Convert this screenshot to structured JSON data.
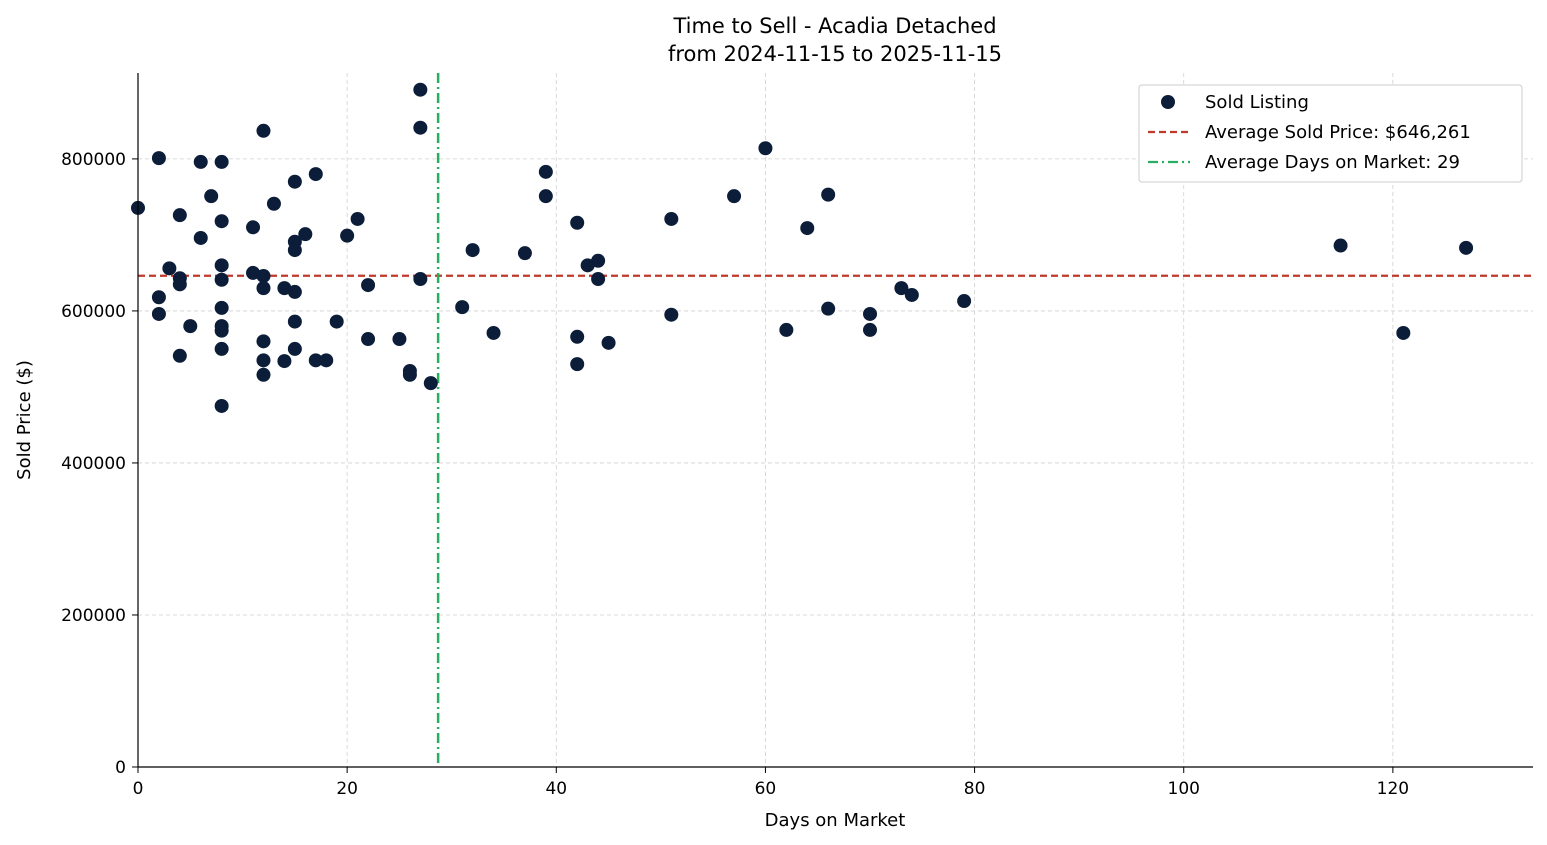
{
  "chart_data": {
    "type": "scatter",
    "title": "Time to Sell - Acadia Detached",
    "subtitle": "from 2024-11-15 to 2025-11-15",
    "xlabel": "Days on Market",
    "ylabel": "Sold Price ($)",
    "xlim": [
      0,
      133.4
    ],
    "ylim": [
      0,
      913000
    ],
    "xticks": [
      0,
      20,
      40,
      60,
      80,
      100,
      120
    ],
    "yticks": [
      0,
      200000,
      400000,
      600000,
      800000
    ],
    "grid": true,
    "legend_position": "top-right",
    "legend": {
      "points": "Sold Listing",
      "avg_price": "Average Sold Price: $646,261",
      "avg_days": "Average Days on Market: 29"
    },
    "avg_price": 646261,
    "avg_days": 28.7,
    "colors": {
      "points": "#0b1d38",
      "avg_price": "#c0392b",
      "avg_days": "#27ae60"
    },
    "points": [
      [
        0,
        735500
      ],
      [
        2,
        801000
      ],
      [
        2,
        618000
      ],
      [
        2,
        596000
      ],
      [
        3,
        656000
      ],
      [
        4,
        726000
      ],
      [
        4,
        643000
      ],
      [
        4,
        635000
      ],
      [
        4,
        541000
      ],
      [
        5,
        580000
      ],
      [
        6,
        796000
      ],
      [
        6,
        696000
      ],
      [
        7,
        751000
      ],
      [
        8,
        796000
      ],
      [
        8,
        718000
      ],
      [
        8,
        660000
      ],
      [
        8,
        641000
      ],
      [
        8,
        604000
      ],
      [
        8,
        580000
      ],
      [
        8,
        574000
      ],
      [
        8,
        550000
      ],
      [
        8,
        475000
      ],
      [
        11,
        710000
      ],
      [
        11,
        650000
      ],
      [
        12,
        837000
      ],
      [
        12,
        646000
      ],
      [
        12,
        630000
      ],
      [
        12,
        560000
      ],
      [
        12,
        535000
      ],
      [
        12,
        516000
      ],
      [
        13,
        741000
      ],
      [
        14,
        630000
      ],
      [
        14,
        534000
      ],
      [
        15,
        770000
      ],
      [
        15,
        691000
      ],
      [
        15,
        680000
      ],
      [
        15,
        625000
      ],
      [
        15,
        586000
      ],
      [
        15,
        550000
      ],
      [
        16,
        701000
      ],
      [
        17,
        780000
      ],
      [
        17,
        535000
      ],
      [
        18,
        535000
      ],
      [
        19,
        586000
      ],
      [
        20,
        699000
      ],
      [
        21,
        721000
      ],
      [
        22,
        634000
      ],
      [
        22,
        563000
      ],
      [
        25,
        563000
      ],
      [
        26,
        521000
      ],
      [
        26,
        516000
      ],
      [
        27,
        891000
      ],
      [
        27,
        841000
      ],
      [
        27,
        642000
      ],
      [
        28,
        505000
      ],
      [
        31,
        605000
      ],
      [
        32,
        680000
      ],
      [
        34,
        571000
      ],
      [
        37,
        676000
      ],
      [
        39,
        783000
      ],
      [
        39,
        751000
      ],
      [
        42,
        716000
      ],
      [
        42,
        566000
      ],
      [
        42,
        530000
      ],
      [
        43,
        660000
      ],
      [
        44,
        666000
      ],
      [
        44,
        642000
      ],
      [
        45,
        558000
      ],
      [
        51,
        721000
      ],
      [
        51,
        595000
      ],
      [
        57,
        751000
      ],
      [
        60,
        814000
      ],
      [
        62,
        575000
      ],
      [
        64,
        709000
      ],
      [
        66,
        753000
      ],
      [
        66,
        603000
      ],
      [
        70,
        596000
      ],
      [
        70,
        575000
      ],
      [
        73,
        630000
      ],
      [
        74,
        621000
      ],
      [
        79,
        613000
      ],
      [
        115,
        686000
      ],
      [
        121,
        571000
      ],
      [
        127,
        683000
      ]
    ]
  }
}
